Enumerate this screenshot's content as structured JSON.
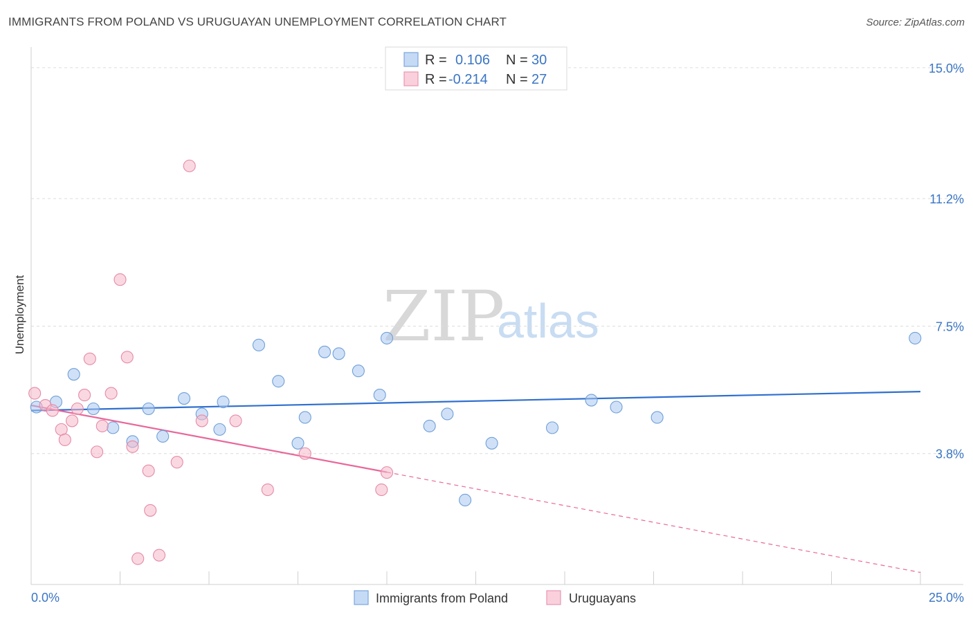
{
  "header": {
    "title": "IMMIGRANTS FROM POLAND VS URUGUAYAN UNEMPLOYMENT CORRELATION CHART",
    "source": "Source: ZipAtlas.com"
  },
  "watermark": {
    "zip": "ZIP",
    "atlas": "atlas"
  },
  "stats": [
    {
      "r_label": "R =",
      "r_value": "0.106",
      "n_label": "N =",
      "n_value": "30",
      "color": "#a9c8f0"
    },
    {
      "r_label": "R =",
      "r_value": "-0.214",
      "n_label": "N =",
      "n_value": "27",
      "color": "#f5b8cb"
    }
  ],
  "chart_data": {
    "type": "scatter",
    "title": "IMMIGRANTS FROM POLAND VS URUGUAYAN UNEMPLOYMENT CORRELATION CHART",
    "xlabel": "",
    "ylabel": "Unemployment",
    "xlim": [
      0,
      25
    ],
    "ylim": [
      0,
      15.4
    ],
    "x_tick_labels": [
      "0.0%",
      "25.0%"
    ],
    "y_ticks": [
      3.8,
      7.5,
      11.2,
      15.0
    ],
    "y_tick_labels": [
      "3.8%",
      "7.5%",
      "11.2%",
      "15.0%"
    ],
    "grid": true,
    "legend_position": "bottom-center",
    "series": [
      {
        "name": "Immigrants from Poland",
        "color": "#a9c8f0",
        "stroke": "#6f9fd8",
        "trend_color": "#2f6fcf",
        "trend": {
          "x0": 0,
          "y0": 5.05,
          "x1": 25,
          "y1": 5.6,
          "dashed_from": null
        },
        "points": [
          [
            0.15,
            5.15
          ],
          [
            0.7,
            5.3
          ],
          [
            1.2,
            6.1
          ],
          [
            1.75,
            5.1
          ],
          [
            2.3,
            4.55
          ],
          [
            2.85,
            4.15
          ],
          [
            3.3,
            5.1
          ],
          [
            3.7,
            4.3
          ],
          [
            4.3,
            5.4
          ],
          [
            4.8,
            4.95
          ],
          [
            5.3,
            4.5
          ],
          [
            5.4,
            5.3
          ],
          [
            6.4,
            6.95
          ],
          [
            6.95,
            5.9
          ],
          [
            7.5,
            4.1
          ],
          [
            7.7,
            4.85
          ],
          [
            8.25,
            6.75
          ],
          [
            8.65,
            6.7
          ],
          [
            9.2,
            6.2
          ],
          [
            9.8,
            5.5
          ],
          [
            10.0,
            7.15
          ],
          [
            11.2,
            4.6
          ],
          [
            11.7,
            4.95
          ],
          [
            12.2,
            2.45
          ],
          [
            12.95,
            4.1
          ],
          [
            14.65,
            4.55
          ],
          [
            15.75,
            5.35
          ],
          [
            16.45,
            5.15
          ],
          [
            17.6,
            4.85
          ],
          [
            24.85,
            7.15
          ]
        ]
      },
      {
        "name": "Uruguayans",
        "color": "#f5b8cb",
        "stroke": "#e58aa6",
        "trend_color": "#e8679a",
        "trend": {
          "x0": 0,
          "y0": 5.2,
          "x1": 25,
          "y1": 0.35,
          "dashed_from": 10.0
        },
        "points": [
          [
            0.1,
            5.55
          ],
          [
            0.4,
            5.2
          ],
          [
            0.6,
            5.05
          ],
          [
            0.85,
            4.5
          ],
          [
            0.95,
            4.2
          ],
          [
            1.15,
            4.75
          ],
          [
            1.3,
            5.1
          ],
          [
            1.5,
            5.5
          ],
          [
            1.65,
            6.55
          ],
          [
            1.85,
            3.85
          ],
          [
            2.0,
            4.6
          ],
          [
            2.25,
            5.55
          ],
          [
            2.5,
            8.85
          ],
          [
            2.7,
            6.6
          ],
          [
            2.85,
            4.0
          ],
          [
            3.0,
            0.75
          ],
          [
            3.3,
            3.3
          ],
          [
            3.35,
            2.15
          ],
          [
            3.6,
            0.85
          ],
          [
            4.1,
            3.55
          ],
          [
            4.45,
            12.15
          ],
          [
            4.8,
            4.75
          ],
          [
            5.75,
            4.75
          ],
          [
            6.65,
            2.75
          ],
          [
            7.7,
            3.8
          ],
          [
            9.85,
            2.75
          ],
          [
            10.0,
            3.25
          ]
        ]
      }
    ]
  },
  "legend": {
    "items": [
      {
        "label": "Immigrants from Poland",
        "color": "#a9c8f0"
      },
      {
        "label": "Uruguayans",
        "color": "#f5b8cb"
      }
    ]
  }
}
